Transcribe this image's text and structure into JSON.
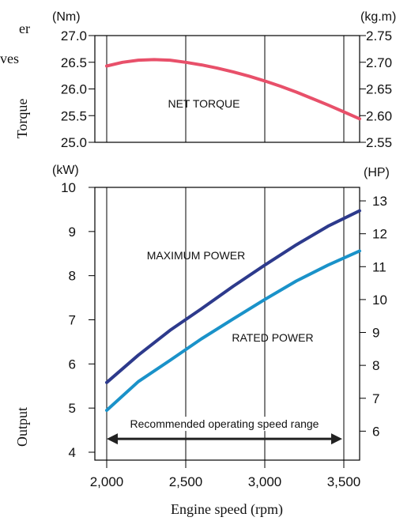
{
  "chart_data": [
    {
      "type": "line",
      "title_fragments": [
        "er",
        "ves"
      ],
      "side_label": "Torque",
      "left_unit": "(Nm)",
      "right_unit": "(kg.m)",
      "x_ticks": [
        "2,000",
        "2,500",
        "3,000",
        "3,500"
      ],
      "xlim": [
        2000,
        3600
      ],
      "y_ticks_left": [
        "25.0",
        "25.5",
        "26.0",
        "26.5",
        "27.0"
      ],
      "ylim_left": [
        25.0,
        27.0
      ],
      "y_ticks_right": [
        "2.55",
        "2.60",
        "2.65",
        "2.70",
        "2.75"
      ],
      "ylim_right": [
        2.55,
        2.75
      ],
      "grid": true,
      "series": [
        {
          "name": "NET TORQUE",
          "color": "#e8506a",
          "x": [
            2000,
            2100,
            2200,
            2300,
            2400,
            2500,
            2600,
            2700,
            2800,
            2900,
            3000,
            3100,
            3200,
            3300,
            3400,
            3500,
            3600
          ],
          "y": [
            26.43,
            26.5,
            26.54,
            26.55,
            26.54,
            26.5,
            26.45,
            26.39,
            26.32,
            26.24,
            26.15,
            26.05,
            25.94,
            25.82,
            25.7,
            25.57,
            25.44
          ]
        }
      ]
    },
    {
      "type": "line",
      "side_label": "Output",
      "left_unit": "(kW)",
      "right_unit": "(HP)",
      "x_ticks": [
        "2,000",
        "2,500",
        "3,000",
        "3,500"
      ],
      "xlim": [
        2000,
        3600
      ],
      "y_ticks_left": [
        "4",
        "5",
        "6",
        "7",
        "8",
        "9",
        "10"
      ],
      "ylim_left": [
        4,
        10
      ],
      "y_ticks_right": [
        "6",
        "7",
        "8",
        "9",
        "10",
        "11",
        "12",
        "13"
      ],
      "ylim_right": [
        5.36,
        13.41
      ],
      "xlabel": "Engine speed (rpm)",
      "grid": true,
      "annotation": {
        "text": "Recommended operating speed range",
        "x_range": [
          2000,
          3600
        ],
        "y": 4.5
      },
      "series": [
        {
          "name": "MAXIMUM POWER",
          "color": "#2d3a8c",
          "x": [
            2000,
            2200,
            2400,
            2600,
            2800,
            3000,
            3200,
            3400,
            3600
          ],
          "y": [
            5.58,
            6.2,
            6.76,
            7.25,
            7.76,
            8.24,
            8.7,
            9.12,
            9.47
          ]
        },
        {
          "name": "RATED POWER",
          "color": "#1a92c9",
          "x": [
            2000,
            2200,
            2400,
            2600,
            2800,
            3000,
            3200,
            3400,
            3600
          ],
          "y": [
            4.95,
            5.6,
            6.08,
            6.57,
            7.02,
            7.46,
            7.88,
            8.24,
            8.56
          ]
        }
      ]
    }
  ]
}
